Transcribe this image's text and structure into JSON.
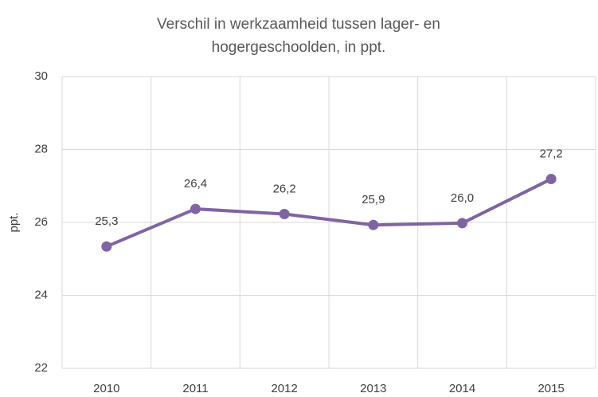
{
  "chart_data": {
    "type": "line",
    "title": "Verschil in werkzaamheid tussen lager- en hogergeschoolden, in ppt.",
    "y_label": "ppt.",
    "categories": [
      "2010",
      "2011",
      "2012",
      "2013",
      "2014",
      "2015"
    ],
    "series": [
      {
        "name": "Verschil",
        "color": "#8064a2",
        "values": [
          25.34,
          26.37,
          26.23,
          25.93,
          25.98,
          27.19
        ],
        "value_labels": [
          "25,3",
          "26,4",
          "26,2",
          "25,9",
          "26,0",
          "27,2"
        ]
      }
    ],
    "ylim": [
      22,
      30
    ],
    "yticks": [
      22,
      24,
      26,
      28,
      30
    ],
    "grid": true
  }
}
